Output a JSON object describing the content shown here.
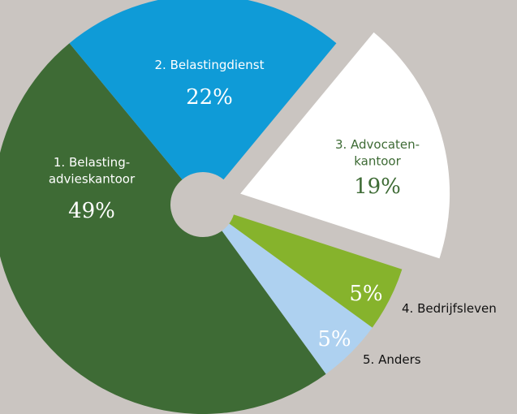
{
  "chart_data": {
    "type": "pie",
    "categories": [
      "1. Belasting-\nadvieskantoor",
      "2. Belastingdienst",
      "3. Advocaten-\nkantoor",
      "4. Bedrijfsleven",
      "5. Anders"
    ],
    "values": [
      49,
      22,
      19,
      5,
      5
    ],
    "value_labels": [
      "49%",
      "22%",
      "19%",
      "5%",
      "5%"
    ],
    "colors": [
      "#3e6b35",
      "#0f9bd7",
      "#ffffff",
      "#86b32c",
      "#aed1f0"
    ]
  }
}
